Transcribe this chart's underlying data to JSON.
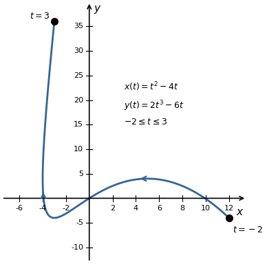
{
  "t_start": -2,
  "t_end": 3,
  "xlim": [
    -7.5,
    13.5
  ],
  "ylim": [
    -13,
    40
  ],
  "xticks": [
    -6,
    -4,
    -2,
    2,
    4,
    6,
    8,
    10,
    12
  ],
  "yticks": [
    -10,
    -5,
    5,
    10,
    15,
    20,
    25,
    30,
    35
  ],
  "curve_color": "#336699",
  "curve_lw": 2.0,
  "dot_color": "black",
  "dot_size": 7,
  "label_t3": "$t = 3$",
  "label_tm2": "$t = -2$",
  "eq1": "$x(t) = t^2 - 4t$",
  "eq2": "$y(t) = 2t^3 - 6t$",
  "eq3": "$-2 \\leq t \\leq 3$",
  "xlabel": "$x$",
  "ylabel": "$y$",
  "background_color": "#ffffff",
  "arrow1_t": -1.0,
  "arrow2_t": 1.8
}
